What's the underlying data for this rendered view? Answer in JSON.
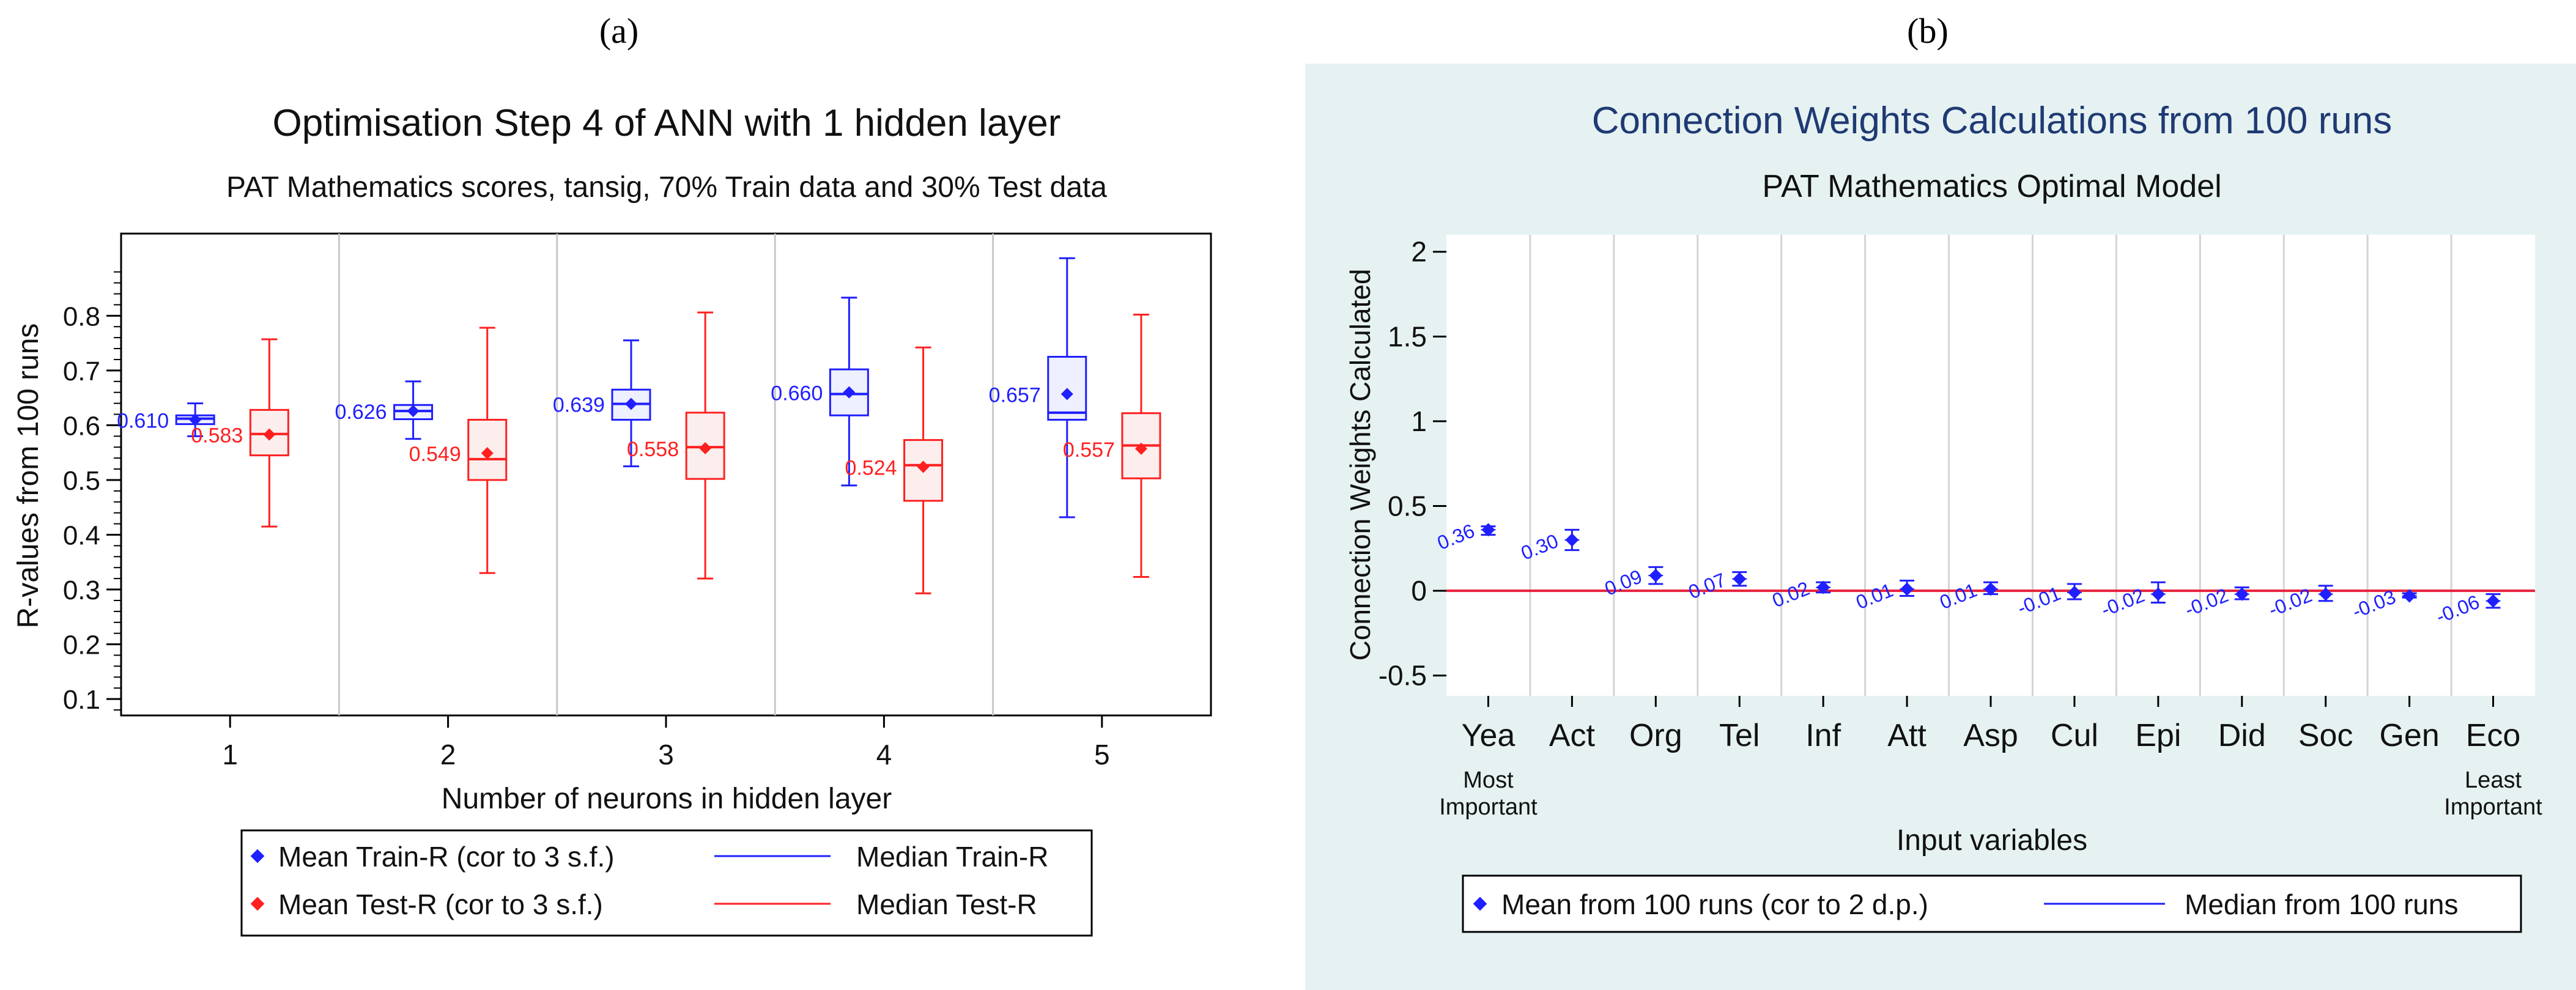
{
  "panel_labels": {
    "a": "(a)",
    "b": "(b)"
  },
  "colors": {
    "train": "#1f1fff",
    "test": "#ff2020",
    "panel_b_bg": "#e6f2f2",
    "title_b": "#1f3a73",
    "zero_line": "#e8203a"
  },
  "chart_data": [
    {
      "type": "box",
      "title": "Optimisation Step 4 of ANN with 1 hidden layer",
      "subtitle": "PAT Mathematics scores, tansig, 70% Train data and 30% Test data",
      "xlabel": "Number of neurons in hidden layer",
      "ylabel": "R-values from 100 runs",
      "categories": [
        "1",
        "2",
        "3",
        "4",
        "5"
      ],
      "ylim": [
        0.07,
        0.95
      ],
      "yticks": [
        "0.1",
        "0.2",
        "0.3",
        "0.4",
        "0.5",
        "0.6",
        "0.7",
        "0.8"
      ],
      "series": [
        {
          "name": "Train-R",
          "boxes": [
            {
              "min": 0.58,
              "q1": 0.602,
              "median": 0.612,
              "q3": 0.618,
              "max": 0.64,
              "mean": 0.61,
              "label": "0.610"
            },
            {
              "min": 0.575,
              "q1": 0.611,
              "median": 0.626,
              "q3": 0.637,
              "max": 0.68,
              "mean": 0.626,
              "label": "0.626"
            },
            {
              "min": 0.525,
              "q1": 0.61,
              "median": 0.639,
              "q3": 0.665,
              "max": 0.755,
              "mean": 0.639,
              "label": "0.639"
            },
            {
              "min": 0.49,
              "q1": 0.618,
              "median": 0.657,
              "q3": 0.702,
              "max": 0.833,
              "mean": 0.66,
              "label": "0.660"
            },
            {
              "min": 0.432,
              "q1": 0.61,
              "median": 0.623,
              "q3": 0.725,
              "max": 0.905,
              "mean": 0.657,
              "label": "0.657"
            }
          ]
        },
        {
          "name": "Test-R",
          "boxes": [
            {
              "min": 0.415,
              "q1": 0.545,
              "median": 0.584,
              "q3": 0.628,
              "max": 0.757,
              "mean": 0.583,
              "label": "0.583"
            },
            {
              "min": 0.33,
              "q1": 0.5,
              "median": 0.538,
              "q3": 0.61,
              "max": 0.778,
              "mean": 0.549,
              "label": "0.549"
            },
            {
              "min": 0.32,
              "q1": 0.502,
              "median": 0.56,
              "q3": 0.623,
              "max": 0.806,
              "mean": 0.558,
              "label": "0.558"
            },
            {
              "min": 0.293,
              "q1": 0.462,
              "median": 0.527,
              "q3": 0.573,
              "max": 0.742,
              "mean": 0.524,
              "label": "0.524"
            },
            {
              "min": 0.323,
              "q1": 0.503,
              "median": 0.563,
              "q3": 0.622,
              "max": 0.802,
              "mean": 0.557,
              "label": "0.557"
            }
          ]
        }
      ],
      "legend": [
        "Mean Train-R (cor to 3 s.f.)",
        "Median Train-R",
        "Mean Test-R (cor to 3 s.f.)",
        "Median Test-R"
      ]
    },
    {
      "type": "scatter",
      "title": "Connection Weights Calculations from 100 runs",
      "subtitle": "PAT Mathematics Optimal Model",
      "xlabel": "Input variables",
      "ylabel": "Connection Weights Calculated",
      "categories": [
        "Yea",
        "Act",
        "Org",
        "Tel",
        "Inf",
        "Att",
        "Asp",
        "Cul",
        "Epi",
        "Did",
        "Soc",
        "Gen",
        "Eco"
      ],
      "ylim": [
        -0.62,
        2.1
      ],
      "yticks": [
        "-0.5",
        "0",
        "0.5",
        "1",
        "1.5",
        "2"
      ],
      "x_annotations": {
        "first": "Most\nImportant",
        "last": "Least\nImportant"
      },
      "values": [
        0.36,
        0.3,
        0.09,
        0.07,
        0.02,
        0.01,
        0.01,
        -0.01,
        -0.02,
        -0.02,
        -0.02,
        -0.03,
        -0.06
      ],
      "value_labels": [
        "0.36",
        "0.30",
        "0.09",
        "0.07",
        "0.02",
        "0.01",
        "0.01",
        "-0.01",
        "-0.02",
        "-0.02",
        "-0.02",
        "-0.03",
        "-0.06"
      ],
      "lower": [
        0.33,
        0.24,
        0.04,
        0.03,
        -0.01,
        -0.03,
        -0.02,
        -0.05,
        -0.07,
        -0.05,
        -0.06,
        -0.04,
        -0.1
      ],
      "upper": [
        0.38,
        0.36,
        0.14,
        0.11,
        0.05,
        0.06,
        0.05,
        0.04,
        0.05,
        0.02,
        0.03,
        -0.015,
        -0.02
      ],
      "reference_line": 0,
      "legend": [
        "Mean from 100 runs (cor to 2 d.p.)",
        "Median from 100 runs"
      ]
    }
  ]
}
